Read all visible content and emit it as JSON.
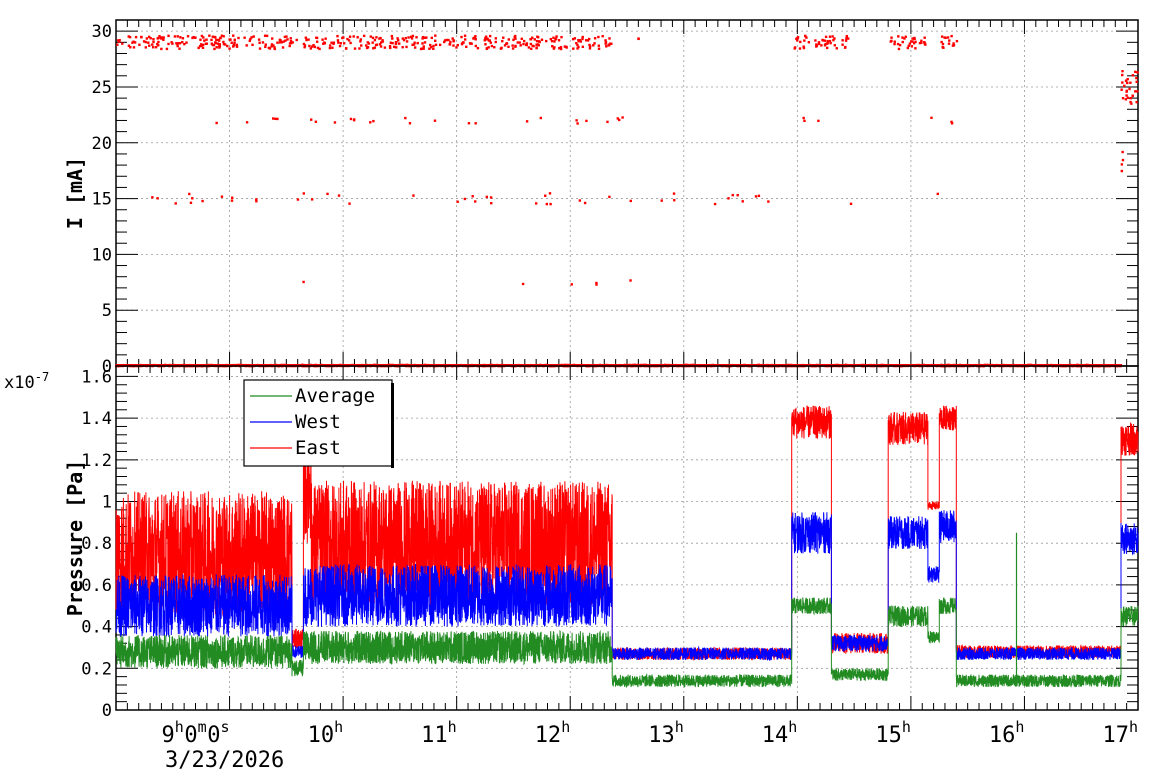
{
  "chart_data": [
    {
      "type": "scatter",
      "ylabel": "I [mA]",
      "ylim": [
        0,
        31
      ],
      "x_range_hours": [
        8.0,
        17.0
      ],
      "y_ticks": [
        0,
        5,
        10,
        15,
        20,
        25,
        30
      ],
      "grid": true,
      "series": [
        {
          "color": "#ff0000",
          "bands": [
            {
              "level": 29,
              "spread": 0.6,
              "density": 10,
              "segments": [
                [
                  8.0,
                  9.3
                ],
                [
                  9.3,
                  9.6
                ],
                [
                  9.65,
                  10.5
                ],
                [
                  10.5,
                  10.85
                ],
                [
                  10.85,
                  11.3
                ],
                [
                  11.3,
                  11.7
                ],
                [
                  11.7,
                  12.0
                ],
                [
                  12.0,
                  12.37
                ],
                [
                  12.6,
                  12.62
                ],
                [
                  13.97,
                  14.45
                ],
                [
                  14.82,
                  15.15
                ],
                [
                  15.27,
                  15.42
                ]
              ]
            },
            {
              "level": 22,
              "spread": 0.3,
              "density": 0.6,
              "segments": [
                [
                  8.1,
                  12.6
                ],
                [
                  13.97,
                  14.5
                ],
                [
                  14.9,
                  15.4
                ]
              ]
            },
            {
              "level": 15,
              "spread": 0.5,
              "density": 0.8,
              "segments": [
                [
                  8.2,
                  13.95
                ],
                [
                  14.45,
                  14.5
                ],
                [
                  15.15,
                  15.25
                ]
              ]
            },
            {
              "level": 7.5,
              "spread": 0.3,
              "density": 0.15,
              "segments": [
                [
                  8.9,
                  12.9
                ]
              ]
            },
            {
              "level": 0,
              "spread": 0.1,
              "density": 14,
              "segments": [
                [
                  8.0,
                  16.85
                ]
              ]
            },
            {
              "level": 25,
              "spread": 1.5,
              "density": 20,
              "segments": [
                [
                  16.85,
                  17.0
                ]
              ]
            },
            {
              "level": 18,
              "spread": 1.5,
              "density": 8,
              "segments": [
                [
                  16.85,
                  16.9
                ]
              ]
            }
          ]
        }
      ]
    },
    {
      "type": "line",
      "ylabel": "Pressure [Pa]",
      "multiplier": "x10",
      "multiplier_exp": "-7",
      "ylim": [
        0,
        1.65
      ],
      "x_range_hours": [
        8.0,
        17.0
      ],
      "y_ticks": [
        0,
        0.2,
        0.4,
        0.6,
        0.8,
        1,
        1.2,
        1.4,
        1.6
      ],
      "grid": true,
      "legend": {
        "position": "top-left"
      },
      "series": [
        {
          "name": "East",
          "color": "#ff0000",
          "segments": [
            {
              "x": [
                8.0,
                9.55
              ],
              "base": 0.75,
              "amp": 0.3
            },
            {
              "x": [
                9.55,
                9.65
              ],
              "base": 0.34,
              "amp": 0.05
            },
            {
              "x": [
                9.65,
                9.72
              ],
              "base": 1.1,
              "amp": 0.3
            },
            {
              "x": [
                9.72,
                12.37
              ],
              "base": 0.8,
              "amp": 0.3
            },
            {
              "x": [
                12.37,
                13.95
              ],
              "base": 0.27,
              "amp": 0.03
            },
            {
              "x": [
                13.95,
                14.3
              ],
              "base": 1.38,
              "amp": 0.08
            },
            {
              "x": [
                14.3,
                14.8
              ],
              "base": 0.32,
              "amp": 0.05
            },
            {
              "x": [
                14.8,
                15.15
              ],
              "base": 1.35,
              "amp": 0.08
            },
            {
              "x": [
                15.15,
                15.25
              ],
              "base": 0.98,
              "amp": 0.02
            },
            {
              "x": [
                15.25,
                15.4
              ],
              "base": 1.4,
              "amp": 0.06
            },
            {
              "x": [
                15.4,
                16.85
              ],
              "base": 0.28,
              "amp": 0.03
            },
            {
              "x": [
                16.85,
                17.0
              ],
              "base": 1.3,
              "amp": 0.08
            }
          ]
        },
        {
          "name": "West",
          "color": "#0000ff",
          "segments": [
            {
              "x": [
                8.0,
                9.55
              ],
              "base": 0.5,
              "amp": 0.15
            },
            {
              "x": [
                9.55,
                9.65
              ],
              "base": 0.28,
              "amp": 0.03
            },
            {
              "x": [
                9.65,
                12.37
              ],
              "base": 0.55,
              "amp": 0.15
            },
            {
              "x": [
                12.37,
                13.95
              ],
              "base": 0.27,
              "amp": 0.03
            },
            {
              "x": [
                13.95,
                14.3
              ],
              "base": 0.85,
              "amp": 0.1
            },
            {
              "x": [
                14.3,
                14.8
              ],
              "base": 0.32,
              "amp": 0.04
            },
            {
              "x": [
                14.8,
                15.15
              ],
              "base": 0.85,
              "amp": 0.08
            },
            {
              "x": [
                15.15,
                15.25
              ],
              "base": 0.65,
              "amp": 0.04
            },
            {
              "x": [
                15.25,
                15.4
              ],
              "base": 0.88,
              "amp": 0.08
            },
            {
              "x": [
                15.4,
                16.85
              ],
              "base": 0.27,
              "amp": 0.03
            },
            {
              "x": [
                16.85,
                17.0
              ],
              "base": 0.82,
              "amp": 0.08
            }
          ]
        },
        {
          "name": "Average",
          "color": "#228b22",
          "segments": [
            {
              "x": [
                8.0,
                9.55
              ],
              "base": 0.28,
              "amp": 0.08
            },
            {
              "x": [
                9.55,
                9.65
              ],
              "base": 0.2,
              "amp": 0.04
            },
            {
              "x": [
                9.65,
                12.37
              ],
              "base": 0.3,
              "amp": 0.08
            },
            {
              "x": [
                12.37,
                13.95
              ],
              "base": 0.14,
              "amp": 0.03
            },
            {
              "x": [
                13.95,
                14.3
              ],
              "base": 0.5,
              "amp": 0.04
            },
            {
              "x": [
                14.3,
                14.8
              ],
              "base": 0.17,
              "amp": 0.03
            },
            {
              "x": [
                14.8,
                15.15
              ],
              "base": 0.45,
              "amp": 0.05
            },
            {
              "x": [
                15.15,
                15.25
              ],
              "base": 0.35,
              "amp": 0.03
            },
            {
              "x": [
                15.25,
                15.4
              ],
              "base": 0.5,
              "amp": 0.04
            },
            {
              "x": [
                15.4,
                16.85
              ],
              "base": 0.14,
              "amp": 0.03
            },
            {
              "x": [
                16.85,
                17.0
              ],
              "base": 0.45,
              "amp": 0.05
            }
          ],
          "spikes": [
            {
              "x": 15.93,
              "y": 0.85
            }
          ]
        }
      ]
    }
  ],
  "x_axis": {
    "tick_labels": [
      {
        "hour": 9,
        "text": "9",
        "sup": "h",
        "rest": "0",
        "rest_sup": "m",
        "rest2": "0",
        "rest2_sup": "s"
      },
      {
        "hour": 10,
        "text": "10",
        "sup": "h"
      },
      {
        "hour": 11,
        "text": "11",
        "sup": "h"
      },
      {
        "hour": 12,
        "text": "12",
        "sup": "h"
      },
      {
        "hour": 13,
        "text": "13",
        "sup": "h"
      },
      {
        "hour": 14,
        "text": "14",
        "sup": "h"
      },
      {
        "hour": 15,
        "text": "15",
        "sup": "h"
      },
      {
        "hour": 16,
        "text": "16",
        "sup": "h"
      },
      {
        "hour": 17,
        "text": "17",
        "sup": "h"
      }
    ],
    "date_label": "3/23/2026"
  }
}
